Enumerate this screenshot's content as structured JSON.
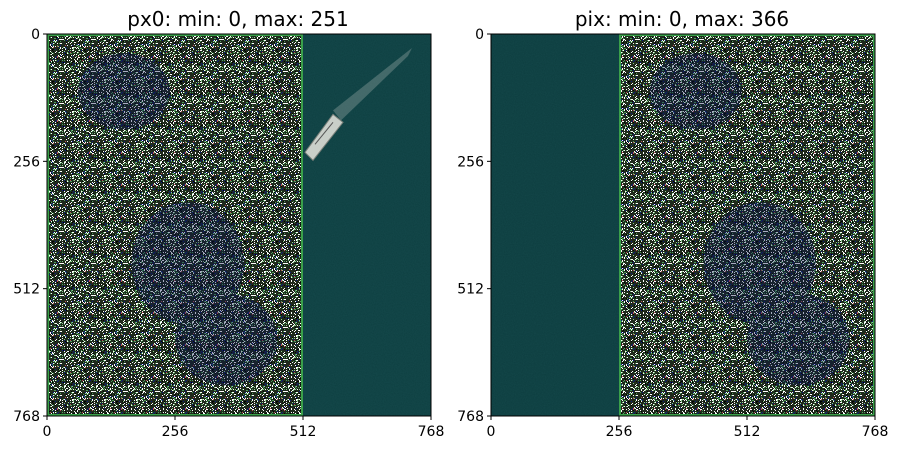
{
  "chart_data": [
    {
      "type": "image",
      "title": "px0: min: 0, max: 251",
      "xlim": [
        0,
        768
      ],
      "ylim": [
        768,
        0
      ],
      "xticks": [
        0,
        256,
        512,
        768
      ],
      "yticks": [
        0,
        256,
        512,
        768
      ],
      "xtick_labels": [
        "0",
        "256",
        "512",
        "768"
      ],
      "ytick_labels": [
        "0",
        "256",
        "512",
        "768"
      ],
      "regions": [
        {
          "name": "noise",
          "x_range": [
            0,
            512
          ],
          "y_range": [
            0,
            768
          ]
        },
        {
          "name": "water",
          "x_range": [
            512,
            768
          ],
          "y_range": [
            0,
            768
          ]
        }
      ],
      "features": [
        {
          "name": "ship",
          "x_range": [
            512,
            730
          ],
          "y_range": [
            20,
            250
          ]
        }
      ],
      "grid": false,
      "colors": {
        "noise_base": "#1f2a1c",
        "noise_palette": [
          "#ffffff",
          "#000000",
          "#4a9e5a",
          "#8fcf8f",
          "#0a1a8a",
          "#c04a5a"
        ],
        "water": "#0e3f41",
        "border": "#3aa04a"
      }
    },
    {
      "type": "image",
      "title": "pix: min: 0, max: 366",
      "xlim": [
        0,
        768
      ],
      "ylim": [
        768,
        0
      ],
      "xticks": [
        0,
        256,
        512,
        768
      ],
      "yticks": [
        0,
        256,
        512,
        768
      ],
      "xtick_labels": [
        "0",
        "256",
        "512",
        "768"
      ],
      "ytick_labels": [
        "0",
        "256",
        "512",
        "768"
      ],
      "regions": [
        {
          "name": "water",
          "x_range": [
            0,
            256
          ],
          "y_range": [
            0,
            768
          ]
        },
        {
          "name": "noise",
          "x_range": [
            256,
            768
          ],
          "y_range": [
            0,
            768
          ]
        }
      ],
      "features": [],
      "grid": false,
      "colors": {
        "noise_base": "#1f2a1c",
        "noise_palette": [
          "#ffffff",
          "#000000",
          "#4a9e5a",
          "#8fcf8f",
          "#0a1a8a",
          "#c04a5a"
        ],
        "water": "#0d3d3f",
        "border": "#3aa04a"
      }
    }
  ]
}
